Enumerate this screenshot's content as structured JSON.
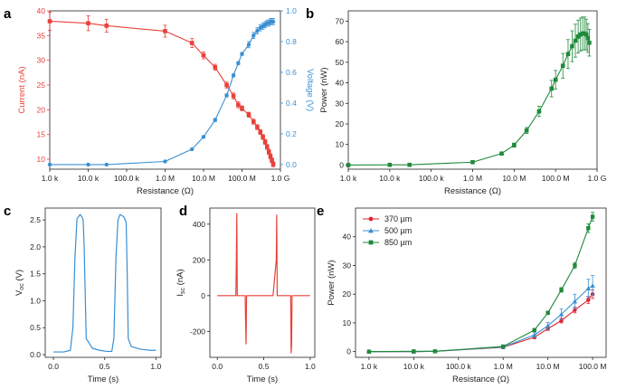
{
  "colors": {
    "current": "#e8413a",
    "voltage": "#3a8fd2",
    "power": "#1f8a3a",
    "s370": "#e02430",
    "s500": "#3a8fd2",
    "s850": "#1f8a3a",
    "axis": "#222222"
  },
  "panels": {
    "a": {
      "label": "a"
    },
    "b": {
      "label": "b"
    },
    "c": {
      "label": "c"
    },
    "d": {
      "label": "d"
    },
    "e": {
      "label": "e"
    }
  },
  "chart_data": [
    {
      "id": "a",
      "type": "line",
      "xscale": "log",
      "xlabel": "Resistance (Ω)",
      "xlim": [
        1000,
        1000000000
      ],
      "xtick_values": [
        1000,
        10000,
        100000,
        1000000,
        10000000,
        100000000,
        1000000000
      ],
      "xtick_labels": [
        "1.0 k",
        "10.0 k",
        "100.0 k",
        "1.0 M",
        "10.0 M",
        "100.0 M",
        "1.0 G"
      ],
      "ylabel": "Current (nA)",
      "ylim": [
        8,
        40
      ],
      "ytick_values": [
        10,
        15,
        20,
        25,
        30,
        35,
        40
      ],
      "ytick_labels": [
        "10",
        "15",
        "20",
        "25",
        "30",
        "35",
        "40"
      ],
      "y2label": "Voltage (V)",
      "y2lim": [
        -0.03,
        1.0
      ],
      "y2tick_values": [
        0.0,
        0.2,
        0.4,
        0.6,
        0.8,
        1.0
      ],
      "y2tick_labels": [
        "0.0",
        "0.2",
        "0.4",
        "0.6",
        "0.8",
        "1.0"
      ],
      "series": [
        {
          "axis": "left",
          "x": [
            1000,
            10000,
            30000,
            1000000,
            5000000,
            10000000,
            20000000,
            40000000,
            60000000,
            80000000,
            100000000,
            150000000,
            200000000,
            250000000,
            300000000,
            350000000,
            400000000,
            450000000,
            500000000,
            550000000,
            600000000,
            650000000
          ],
          "values": [
            37.9,
            37.5,
            37.0,
            35.9,
            33.5,
            31.0,
            28.6,
            25.0,
            22.8,
            21.0,
            20.3,
            19.0,
            17.6,
            16.5,
            15.5,
            14.5,
            13.5,
            12.5,
            11.5,
            10.6,
            9.8,
            9.0
          ],
          "errors": [
            1.8,
            1.5,
            1.3,
            1.2,
            0.9,
            0.7,
            0.6,
            0.6,
            0.6,
            0.6,
            0.5,
            0.5,
            0.5,
            0.5,
            0.5,
            0.5,
            0.5,
            0.5,
            0.5,
            0.5,
            0.5,
            0.5
          ]
        },
        {
          "axis": "right",
          "x": [
            1000,
            10000,
            30000,
            1000000,
            5000000,
            10000000,
            20000000,
            40000000,
            60000000,
            80000000,
            100000000,
            150000000,
            200000000,
            250000000,
            300000000,
            350000000,
            400000000,
            450000000,
            500000000,
            550000000,
            600000000,
            650000000
          ],
          "values": [
            0.0,
            0.0,
            0.0,
            0.02,
            0.1,
            0.18,
            0.29,
            0.45,
            0.58,
            0.66,
            0.72,
            0.78,
            0.84,
            0.87,
            0.89,
            0.9,
            0.91,
            0.92,
            0.92,
            0.93,
            0.93,
            0.93
          ],
          "errors": [
            0,
            0,
            0,
            0,
            0,
            0,
            0.01,
            0.01,
            0.01,
            0.01,
            0.01,
            0.02,
            0.02,
            0.02,
            0.02,
            0.02,
            0.02,
            0.02,
            0.02,
            0.02,
            0.02,
            0.02
          ]
        }
      ]
    },
    {
      "id": "b",
      "type": "line",
      "xscale": "log",
      "xlabel": "Resistance (Ω)",
      "xlim": [
        1000,
        1000000000
      ],
      "xtick_values": [
        1000,
        10000,
        100000,
        1000000,
        10000000,
        100000000,
        1000000000
      ],
      "xtick_labels": [
        "1.0 k",
        "10.0 k",
        "100.0 k",
        "1.0 M",
        "10.0 M",
        "100.0 M",
        "1.0 G"
      ],
      "ylabel": "Power (nW)",
      "ylim": [
        -2,
        75
      ],
      "ytick_values": [
        0,
        10,
        20,
        30,
        40,
        50,
        60,
        70
      ],
      "ytick_labels": [
        "0",
        "10",
        "20",
        "30",
        "40",
        "50",
        "60",
        "70"
      ],
      "series": [
        {
          "x": [
            1000,
            10000,
            30000,
            1000000,
            5000000,
            10000000,
            20000000,
            40000000,
            80000000,
            100000000,
            150000000,
            200000000,
            250000000,
            300000000,
            350000000,
            400000000,
            450000000,
            500000000,
            550000000,
            600000000,
            650000000
          ],
          "values": [
            0.0,
            0.1,
            0.1,
            1.4,
            5.6,
            9.7,
            16.8,
            26.1,
            37.2,
            41.5,
            48.3,
            54.0,
            57.8,
            60.5,
            62.5,
            63.5,
            64.0,
            64.0,
            63.5,
            61.8,
            59.5
          ],
          "errors": [
            0,
            0,
            0,
            0,
            0.5,
            1.0,
            1.5,
            2.5,
            4.0,
            4.5,
            6.0,
            7.0,
            7.5,
            8.0,
            8.0,
            8.0,
            8.0,
            8.0,
            7.5,
            7.0,
            6.5
          ]
        }
      ]
    },
    {
      "id": "c",
      "type": "line",
      "xlabel": "Time (s)",
      "xlim": [
        -0.08,
        1.05
      ],
      "xtick_values": [
        0.0,
        0.5,
        1.0
      ],
      "xtick_labels": [
        "0.0",
        "0.5",
        "1.0"
      ],
      "ylabel": "V",
      "ylabel_sub": "oc",
      "ylabel_unit": " (V)",
      "ylim": [
        -0.05,
        2.72
      ],
      "ytick_values": [
        0.0,
        0.5,
        1.0,
        1.5,
        2.0,
        2.5
      ],
      "ytick_labels": [
        "0.0",
        "0.5",
        "1.0",
        "1.5",
        "2.0",
        "2.5"
      ],
      "series": [
        {
          "x": [
            0.0,
            0.1,
            0.165,
            0.19,
            0.21,
            0.23,
            0.26,
            0.28,
            0.29,
            0.3,
            0.32,
            0.38,
            0.45,
            0.52,
            0.57,
            0.59,
            0.61,
            0.63,
            0.65,
            0.67,
            0.69,
            0.71,
            0.72,
            0.73,
            0.76,
            0.85,
            0.95,
            1.0
          ],
          "values": [
            0.05,
            0.05,
            0.08,
            0.5,
            1.8,
            2.52,
            2.6,
            2.55,
            2.5,
            2.0,
            0.3,
            0.12,
            0.08,
            0.06,
            0.06,
            0.3,
            1.8,
            2.5,
            2.6,
            2.58,
            2.55,
            2.45,
            1.5,
            0.3,
            0.15,
            0.1,
            0.08,
            0.08
          ]
        }
      ]
    },
    {
      "id": "d",
      "type": "line",
      "xlabel": "Time (s)",
      "xlim": [
        -0.08,
        1.05
      ],
      "xtick_values": [
        0.0,
        0.5,
        1.0
      ],
      "xtick_labels": [
        "0.0",
        "0.5",
        "1.0"
      ],
      "ylabel": "I",
      "ylabel_sub": "sc",
      "ylabel_unit": " (nA)",
      "ylim": [
        -345,
        490
      ],
      "ytick_values": [
        -200,
        0,
        200,
        400
      ],
      "ytick_labels": [
        "-200",
        "0",
        "200",
        "400"
      ],
      "series": [
        {
          "x": [
            0.0,
            0.1,
            0.2,
            0.205,
            0.21,
            0.215,
            0.25,
            0.3,
            0.305,
            0.31,
            0.315,
            0.4,
            0.6,
            0.635,
            0.64,
            0.645,
            0.7,
            0.79,
            0.795,
            0.8,
            0.805,
            0.9,
            1.0
          ],
          "values": [
            0,
            0,
            0,
            200,
            460,
            0,
            0,
            0,
            -150,
            -270,
            0,
            0,
            0,
            200,
            450,
            0,
            0,
            0,
            -320,
            -280,
            0,
            0,
            0
          ]
        }
      ]
    },
    {
      "id": "e",
      "type": "line",
      "xscale": "log",
      "xlabel": "Resistance (Ω)",
      "xlim": [
        500,
        200000000
      ],
      "xtick_values": [
        1000,
        10000,
        100000,
        1000000,
        10000000,
        100000000
      ],
      "xtick_labels": [
        "1.0 k",
        "10.0 k",
        "100.0 k",
        "1.0 M",
        "10.0 M",
        "100.0 M"
      ],
      "ylabel": "Power (nW)",
      "ylim": [
        -2,
        50
      ],
      "ytick_values": [
        0,
        10,
        20,
        30,
        40
      ],
      "ytick_labels": [
        "0",
        "10",
        "20",
        "30",
        "40"
      ],
      "legend_position": "top-left",
      "series": [
        {
          "name": "370 µm",
          "marker": "circle",
          "x": [
            1000,
            10000,
            30000,
            1000000,
            5000000,
            10000000,
            20000000,
            40000000,
            80000000,
            100000000
          ],
          "values": [
            0.0,
            0.0,
            0.1,
            1.5,
            5.0,
            8.0,
            10.8,
            14.5,
            18.0,
            20.0
          ],
          "errors": [
            0,
            0,
            0,
            0.2,
            0.5,
            0.6,
            0.8,
            1.0,
            1.2,
            1.5
          ]
        },
        {
          "name": "500 µm",
          "marker": "triangle",
          "x": [
            1000,
            10000,
            30000,
            1000000,
            5000000,
            10000000,
            20000000,
            40000000,
            80000000,
            100000000
          ],
          "values": [
            0.0,
            0.0,
            0.1,
            1.6,
            5.8,
            9.0,
            13.0,
            17.5,
            22.0,
            23.0
          ],
          "errors": [
            0,
            0,
            0,
            0.2,
            0.8,
            1.2,
            1.8,
            2.5,
            3.2,
            3.5
          ]
        },
        {
          "name": "850 µm",
          "marker": "square",
          "x": [
            1000,
            10000,
            30000,
            1000000,
            5000000,
            10000000,
            20000000,
            40000000,
            80000000,
            100000000
          ],
          "values": [
            0.0,
            0.1,
            0.1,
            1.8,
            7.5,
            13.5,
            21.5,
            30.0,
            43.0,
            47.0
          ],
          "errors": [
            0,
            0,
            0,
            0.2,
            0.5,
            0.6,
            0.8,
            1.0,
            1.5,
            1.5
          ]
        }
      ]
    }
  ]
}
